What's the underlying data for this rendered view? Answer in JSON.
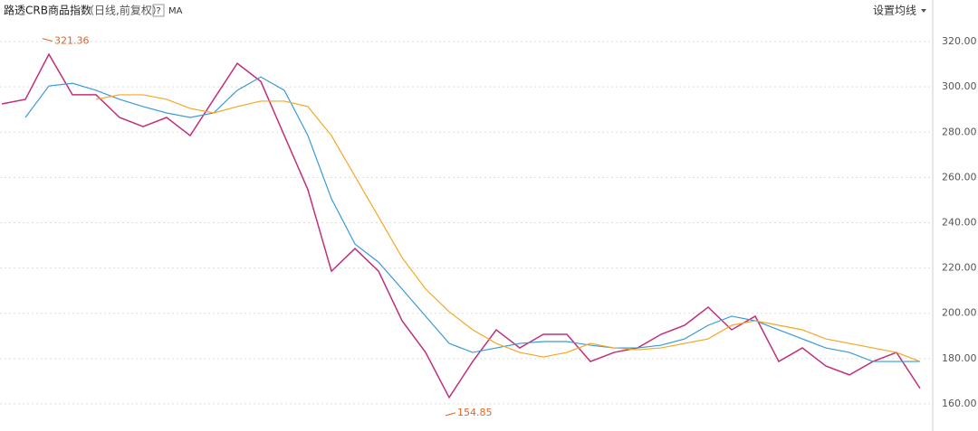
{
  "chart_data": {
    "type": "line",
    "title": "路透CRB商品指数",
    "subtitle": "（日线,前复权）",
    "toolbar": {
      "help": "?",
      "indicator": "MA",
      "settings": "设置均线"
    },
    "ylim": [
      148,
      330.4
    ],
    "yticks": [
      {
        "value": 160,
        "label": "160.00"
      },
      {
        "value": 180,
        "label": "180.00"
      },
      {
        "value": 200,
        "label": "200.00"
      },
      {
        "value": 220,
        "label": "220.00"
      },
      {
        "value": 240,
        "label": "240.00"
      },
      {
        "value": 260,
        "label": "260.00"
      },
      {
        "value": 280,
        "label": "280.00"
      },
      {
        "value": 300,
        "label": "300.00"
      },
      {
        "value": 320,
        "label": "320.00"
      }
    ],
    "grid": true,
    "high": 321.36,
    "low": 154.85,
    "series": [
      {
        "color": "#c0307a",
        "values": [
          292.5,
          294.5,
          314.4,
          296.5,
          296.5,
          286.5,
          282.5,
          286.5,
          278.5,
          294.5,
          310.4,
          302.4,
          278.5,
          254.6,
          218.6,
          228.6,
          218.6,
          196.7,
          182.7,
          162.8,
          178.7,
          192.7,
          184.7,
          190.7,
          190.7,
          178.7,
          182.7,
          184.7,
          190.7,
          194.7,
          202.7,
          192.7,
          198.7,
          178.7,
          184.7,
          176.7,
          172.8,
          178.7,
          182.7,
          166.8
        ]
      },
      {
        "color": "#3a9ad9",
        "values": [
          null,
          286.5,
          300.4,
          301.6,
          298.5,
          294.5,
          291.3,
          288.5,
          286.5,
          288.5,
          298.5,
          304.4,
          298.5,
          278.5,
          250.6,
          230.6,
          222.6,
          210.7,
          198.7,
          186.7,
          182.7,
          184.7,
          186.7,
          187.5,
          187.5,
          185.9,
          184.7,
          184.7,
          185.9,
          188.7,
          194.7,
          198.7,
          196.7,
          192.7,
          188.7,
          184.7,
          182.7,
          178.7,
          178.7,
          178.7
        ]
      },
      {
        "color": "#f5a623",
        "values": [
          null,
          null,
          null,
          null,
          294.5,
          296.5,
          296.5,
          294.5,
          290.5,
          288.5,
          291.3,
          293.7,
          293.7,
          291.3,
          278.5,
          260.5,
          242.6,
          224.6,
          210.7,
          200.7,
          192.7,
          186.7,
          182.7,
          180.7,
          182.7,
          186.7,
          184.7,
          183.9,
          184.7,
          186.7,
          188.7,
          194.7,
          196.7,
          194.7,
          192.7,
          188.7,
          186.7,
          184.7,
          182.7,
          178.7
        ]
      }
    ]
  }
}
